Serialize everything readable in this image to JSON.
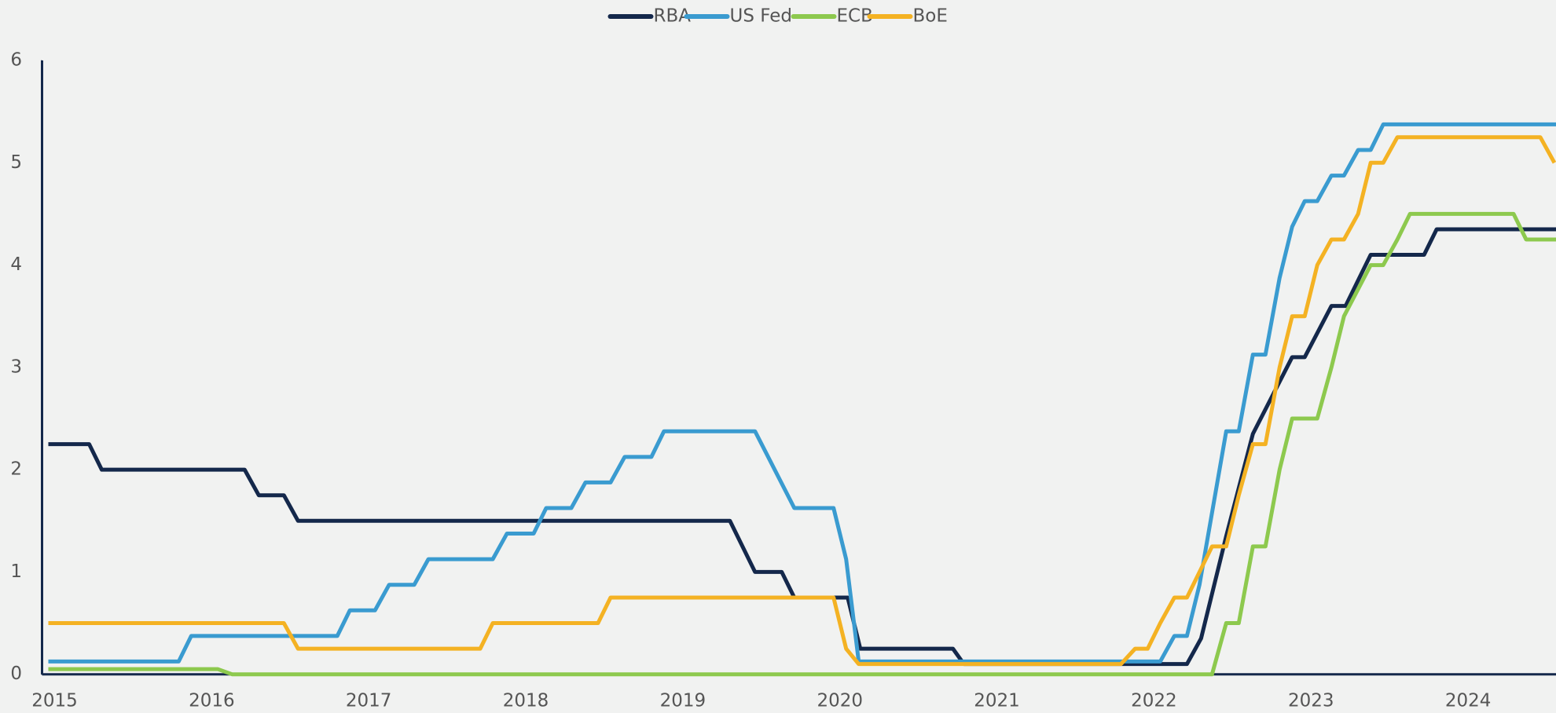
{
  "chart_data": {
    "type": "line",
    "xlim": [
      2014.96,
      2024.6
    ],
    "xticks": [
      2015,
      2016,
      2017,
      2018,
      2019,
      2020,
      2021,
      2022,
      2023,
      2024
    ],
    "ylim": [
      0,
      6
    ],
    "yticks": [
      0,
      1,
      2,
      3,
      4,
      5,
      6
    ],
    "legend": "top",
    "series": [
      {
        "name": "RBA",
        "color": "#14284b",
        "x": [
          2015.0,
          2015.26,
          2015.34,
          2016.25,
          2016.34,
          2016.5,
          2016.59,
          2019.34,
          2019.5,
          2019.67,
          2019.75,
          2020.09,
          2020.17,
          2020.76,
          2020.83,
          2022.25,
          2022.34,
          2022.5,
          2022.67,
          2022.92,
          2023.0,
          2023.17,
          2023.26,
          2023.42,
          2023.76,
          2023.84,
          2024.6
        ],
        "values": [
          2.25,
          2.25,
          2.0,
          2.0,
          1.75,
          1.75,
          1.5,
          1.5,
          1.0,
          1.0,
          0.75,
          0.75,
          0.25,
          0.25,
          0.1,
          0.1,
          0.35,
          1.35,
          2.35,
          3.1,
          3.1,
          3.6,
          3.6,
          4.1,
          4.1,
          4.35,
          4.35
        ]
      },
      {
        "name": "US Fed",
        "color": "#3a9bd0",
        "x": [
          2015.0,
          2015.83,
          2015.91,
          2016.84,
          2016.92,
          2017.08,
          2017.17,
          2017.33,
          2017.42,
          2017.83,
          2017.92,
          2018.09,
          2018.17,
          2018.33,
          2018.42,
          2018.58,
          2018.67,
          2018.84,
          2018.92,
          2019.5,
          2019.75,
          2020.0,
          2020.08,
          2020.16,
          2022.08,
          2022.17,
          2022.25,
          2022.33,
          2022.5,
          2022.58,
          2022.67,
          2022.75,
          2022.84,
          2022.92,
          2023.0,
          2023.08,
          2023.17,
          2023.25,
          2023.34,
          2023.42,
          2023.5,
          2024.6
        ],
        "values": [
          0.125,
          0.125,
          0.375,
          0.375,
          0.625,
          0.625,
          0.875,
          0.875,
          1.125,
          1.125,
          1.375,
          1.375,
          1.625,
          1.625,
          1.875,
          1.875,
          2.125,
          2.125,
          2.375,
          2.375,
          1.625,
          1.625,
          1.125,
          0.125,
          0.125,
          0.375,
          0.375,
          0.875,
          2.375,
          2.375,
          3.125,
          3.125,
          3.875,
          4.375,
          4.625,
          4.625,
          4.875,
          4.875,
          5.125,
          5.125,
          5.375,
          5.375
        ]
      },
      {
        "name": "ECB",
        "color": "#8dc94e",
        "x": [
          2015.0,
          2016.08,
          2016.17,
          2022.41,
          2022.5,
          2022.58,
          2022.67,
          2022.75,
          2022.84,
          2022.92,
          2023.08,
          2023.17,
          2023.25,
          2023.42,
          2023.5,
          2023.59,
          2023.67,
          2024.33,
          2024.41,
          2024.6
        ],
        "values": [
          0.05,
          0.05,
          0.0,
          0.0,
          0.5,
          0.5,
          1.25,
          1.25,
          2.0,
          2.5,
          2.5,
          3.0,
          3.5,
          4.0,
          4.0,
          4.25,
          4.5,
          4.5,
          4.25,
          4.25
        ]
      },
      {
        "name": "BoE",
        "color": "#f4b223",
        "x": [
          2015.0,
          2016.5,
          2016.59,
          2017.75,
          2017.83,
          2018.5,
          2018.58,
          2020.0,
          2020.08,
          2020.16,
          2021.83,
          2021.92,
          2022.0,
          2022.08,
          2022.17,
          2022.25,
          2022.33,
          2022.41,
          2022.5,
          2022.58,
          2022.67,
          2022.75,
          2022.84,
          2022.92,
          2023.0,
          2023.08,
          2023.17,
          2023.25,
          2023.34,
          2023.42,
          2023.5,
          2023.59,
          2024.5,
          2024.59
        ],
        "values": [
          0.5,
          0.5,
          0.25,
          0.25,
          0.5,
          0.5,
          0.75,
          0.75,
          0.25,
          0.1,
          0.1,
          0.25,
          0.25,
          0.5,
          0.75,
          0.75,
          1.0,
          1.25,
          1.25,
          1.75,
          2.25,
          2.25,
          3.0,
          3.5,
          3.5,
          4.0,
          4.25,
          4.25,
          4.5,
          5.0,
          5.0,
          5.25,
          5.25,
          5.0
        ]
      }
    ]
  }
}
